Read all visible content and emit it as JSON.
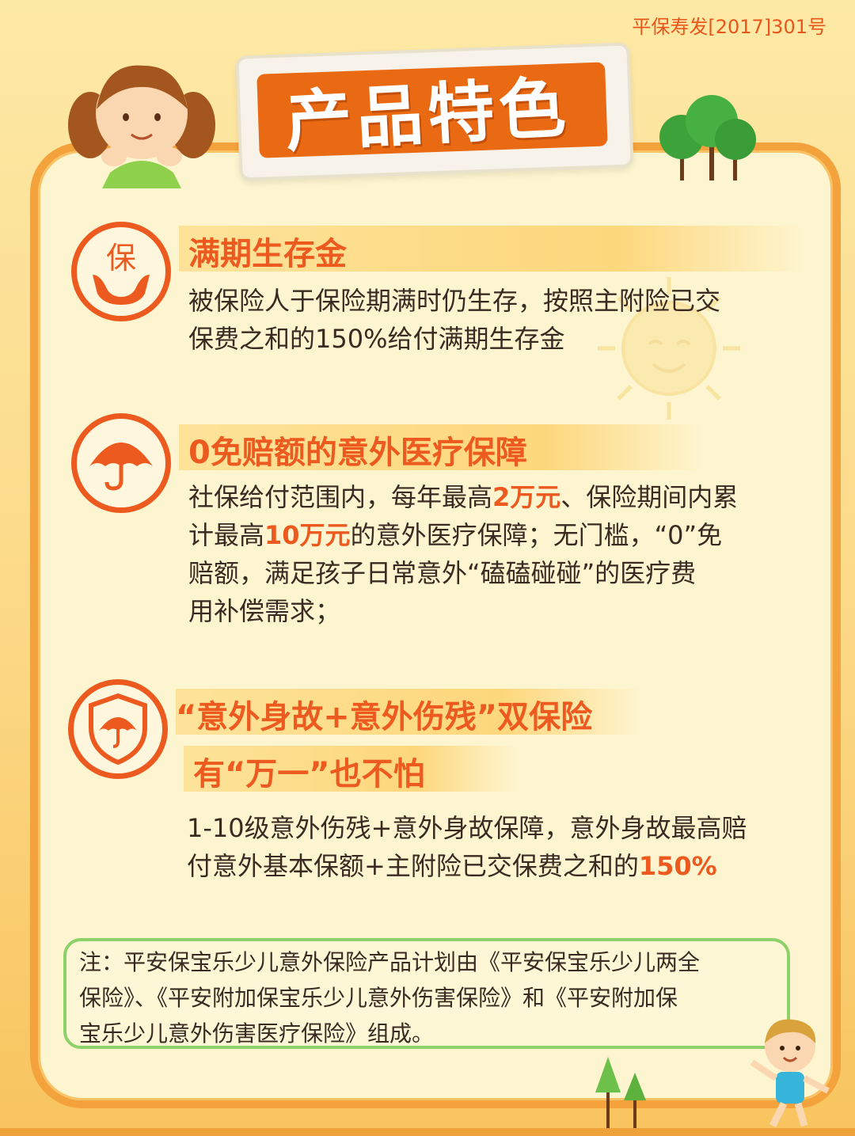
{
  "approval_no": "平保寿发[2017]301号",
  "title": "产品特色",
  "sections": [
    {
      "icon": "bao-hands-icon",
      "heading": "满期生存金",
      "body_lines": [
        "被保险人于保险期满时仍生存，按照主附险已交",
        "保费之和的150%给付满期生存金"
      ]
    },
    {
      "icon": "umbrella-icon",
      "heading": "0免赔额的意外医疗保障",
      "line1_a": "社保给付范围内，每年最高",
      "line1_hl": "2万元",
      "line1_b": "、保险期间内累",
      "line2_a": "计最高",
      "line2_hl": "10万元",
      "line2_b": "的意外医疗保障；无门槛，“0”免",
      "line3": "赔额，满足孩子日常意外“磕磕碰碰”的医疗费",
      "line4": "用补偿需求；"
    },
    {
      "icon": "shield-umbrella-icon",
      "heading": "“意外身故+意外伤残”双保险",
      "subheading": "有“万一”也不怕",
      "line1": "1-10级意外伤残+意外身故保障，意外身故最高赔",
      "line2_a": "付意外基本保额+主附险已交保费之和的",
      "line2_hl": "150%"
    }
  ],
  "note_lines": [
    "注：平安保宝乐少儿意外保险产品计划由《平安保宝乐少儿两全",
    "保险》、《平安附加保宝乐少儿意外伤害保险》和《平安附加保",
    "宝乐少儿意外伤害医疗保险》组成。"
  ],
  "colors": {
    "accent": "#ec5a1f",
    "frame": "#f3a23c",
    "panel": "#fdf5cf",
    "note_border": "#8ed06a"
  }
}
